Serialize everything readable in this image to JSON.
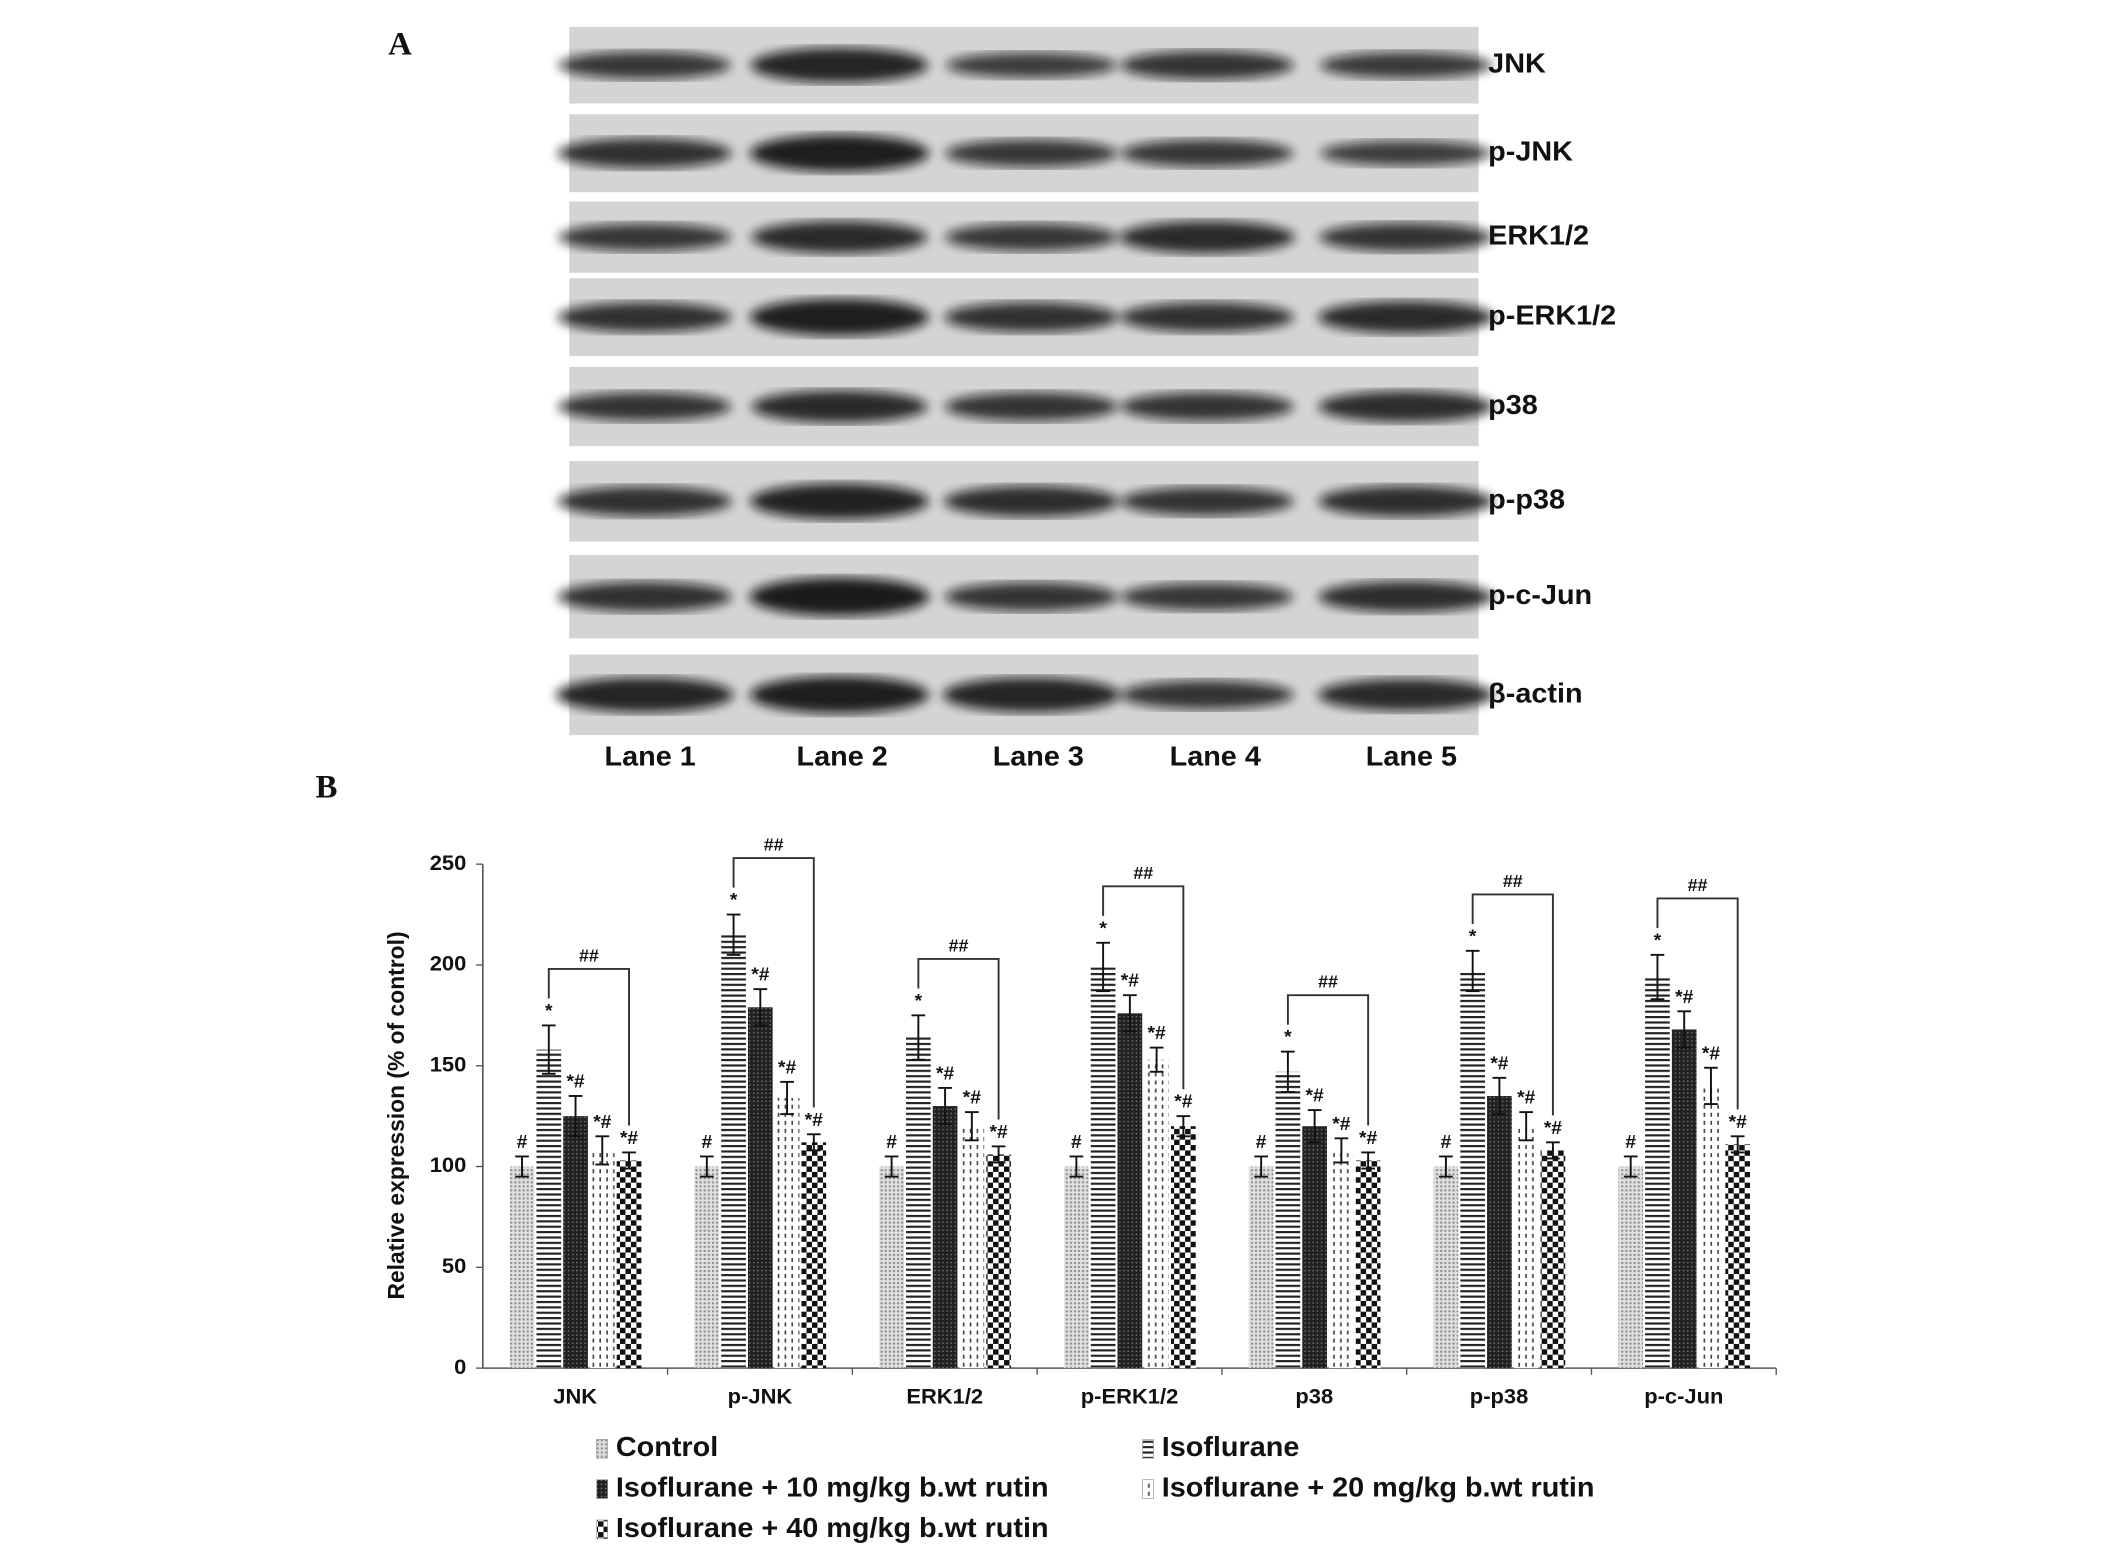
{
  "panel_a": {
    "label": "A",
    "bands": [
      "JNK",
      "p-JNK",
      "ERK1/2",
      "p-ERK1/2",
      "p38",
      "p-p38",
      "p-c-Jun",
      "β-actin"
    ],
    "lanes": [
      "Lane 1",
      "Lane 2",
      "Lane 3",
      "Lane 4",
      "Lane 5"
    ]
  },
  "chart_data": {
    "type": "bar",
    "panel_label": "B",
    "y_label": "Relative expression (%  of control)",
    "categories": [
      "JNK",
      "p-JNK",
      "ERK1/2",
      "p-ERK1/2",
      "p38",
      "p-p38",
      "p-c-Jun"
    ],
    "ylim": [
      0,
      250
    ],
    "yticks": [
      0,
      50,
      100,
      150,
      200,
      250
    ],
    "grid": false,
    "bracket_label": "##",
    "series": [
      {
        "name": "Control",
        "pattern": "dots",
        "color": "#bdbdbd",
        "annotation": "#",
        "values": [
          100,
          100,
          100,
          100,
          100,
          100,
          100
        ],
        "errors": [
          5,
          5,
          5,
          5,
          5,
          5,
          5
        ]
      },
      {
        "name": "Isoflurane",
        "pattern": "hlines",
        "color": "#222222",
        "annotation": "*",
        "values": [
          158,
          215,
          164,
          199,
          147,
          197,
          194
        ],
        "errors": [
          12,
          10,
          11,
          12,
          10,
          10,
          11
        ]
      },
      {
        "name": "Isoflurane + 10 mg/kg b.wt rutin",
        "pattern": "dark",
        "color": "#222222",
        "annotation": "*#",
        "values": [
          125,
          179,
          130,
          176,
          120,
          135,
          168
        ],
        "errors": [
          10,
          9,
          9,
          9,
          8,
          9,
          9
        ]
      },
      {
        "name": "Isoflurane + 20 mg/kg b.wt rutin",
        "pattern": "dashed",
        "color": "#444444",
        "annotation": "*#",
        "values": [
          108,
          134,
          120,
          153,
          108,
          120,
          140
        ],
        "errors": [
          7,
          8,
          7,
          6,
          6,
          7,
          9
        ]
      },
      {
        "name": "Isoflurane + 40 mg/kg b.wt rutin",
        "pattern": "checker",
        "color": "#111111",
        "annotation": "*#",
        "values": [
          103,
          112,
          106,
          120,
          103,
          108,
          111
        ],
        "errors": [
          4,
          4,
          4,
          5,
          4,
          4,
          4
        ]
      }
    ]
  }
}
